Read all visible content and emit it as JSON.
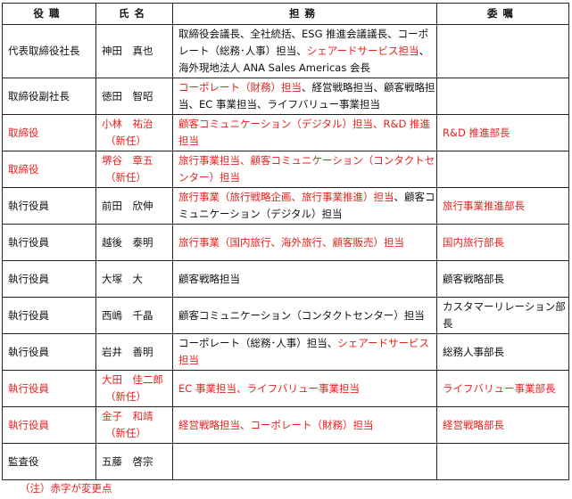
{
  "headers": [
    "役職",
    "氏名",
    "担務",
    "委嘱"
  ],
  "rows": [
    {
      "title": "代表取締役社長",
      "name": "神田　真也",
      "note": "",
      "duties": [
        {
          "t": "取締役会議長、全社統括、ESG 推進会議議長、コーポレート（総務･人事）担当、",
          "red": false
        },
        {
          "t": "シェアードサービス担当",
          "red": true
        },
        {
          "t": "、海外現地法人 ANA Sales Americas 会長",
          "red": false
        }
      ],
      "commission": "",
      "red": false
    },
    {
      "title": "取締役副社長",
      "name": "徳田　智昭",
      "note": "",
      "duties": [
        {
          "t": "コーポレート（財務）担当",
          "red": true
        },
        {
          "t": "、経営戦略担当、顧客戦略担当、EC 事業担当、ライフバリュー事業担当",
          "red": false
        }
      ],
      "commission": "",
      "red": false
    },
    {
      "title": "取締役",
      "name": "小林　祐治",
      "note": "（新任）",
      "duties": [
        {
          "t": "顧客コミュニケーション（デジタル）担当、R&D 推進担当",
          "red": true
        }
      ],
      "commission": "R&D 推進部長",
      "red": true
    },
    {
      "title": "取締役",
      "name": "堺谷　章五",
      "note": "（新任）",
      "duties": [
        {
          "t": "旅行事業担当、顧客コミュニケーション（コンタクトセンター）担当",
          "red": true
        }
      ],
      "commission": "",
      "red": true
    },
    {
      "title": "執行役員",
      "name": "前田　欣伸",
      "note": "",
      "duties": [
        {
          "t": "旅行事業（旅行戦略企画、旅行事業推進）担当",
          "red": true
        },
        {
          "t": "、顧客コミュニケーション（デジタル）担当",
          "red": false
        }
      ],
      "commission": "旅行事業推進部長",
      "commission_red": true,
      "red": false
    },
    {
      "title": "執行役員",
      "name": "越後　泰明",
      "note": "",
      "duties": [
        {
          "t": "旅行事業（国内旅行、海外旅行、顧客販売）担当",
          "red": true
        }
      ],
      "commission": "国内旅行部長",
      "commission_red": true,
      "red": false
    },
    {
      "title": "執行役員",
      "name": "大塚　大",
      "note": "",
      "duties": [
        {
          "t": "顧客戦略担当",
          "red": false
        }
      ],
      "commission": "顧客戦略部長",
      "red": false
    },
    {
      "title": "執行役員",
      "name": "西嶋　千晶",
      "note": "",
      "duties": [
        {
          "t": "顧客コミュニケーション（コンタクトセンター）担当",
          "red": false
        }
      ],
      "commission": "カスタマーリレーション部長",
      "red": false
    },
    {
      "title": "執行役員",
      "name": "岩井　善明",
      "note": "",
      "duties": [
        {
          "t": "コーポレート（総務･人事）担当、",
          "red": false
        },
        {
          "t": "シェアードサービス担当",
          "red": true
        }
      ],
      "commission": "総務人事部長",
      "red": false
    },
    {
      "title": "執行役員",
      "name": "大田　佳二郎",
      "note": "（新任）",
      "duties": [
        {
          "t": "EC 事業担当、ライフバリュー事業担当",
          "red": true
        }
      ],
      "commission": "ライフバリュー事業部長",
      "red": true
    },
    {
      "title": "執行役員",
      "name": "金子　和靖",
      "note": "（新任）",
      "duties": [
        {
          "t": "経営戦略担当、コーポレート（財務）担当",
          "red": true
        }
      ],
      "commission": "経営戦略部長",
      "red": true
    },
    {
      "title": "監査役",
      "name": "五藤　啓宗",
      "note": "",
      "duties": [],
      "commission": "",
      "red": false
    }
  ],
  "footnote": "（注）赤字が変更点",
  "colors": {
    "changed": "#e8211d",
    "text": "#111111"
  }
}
